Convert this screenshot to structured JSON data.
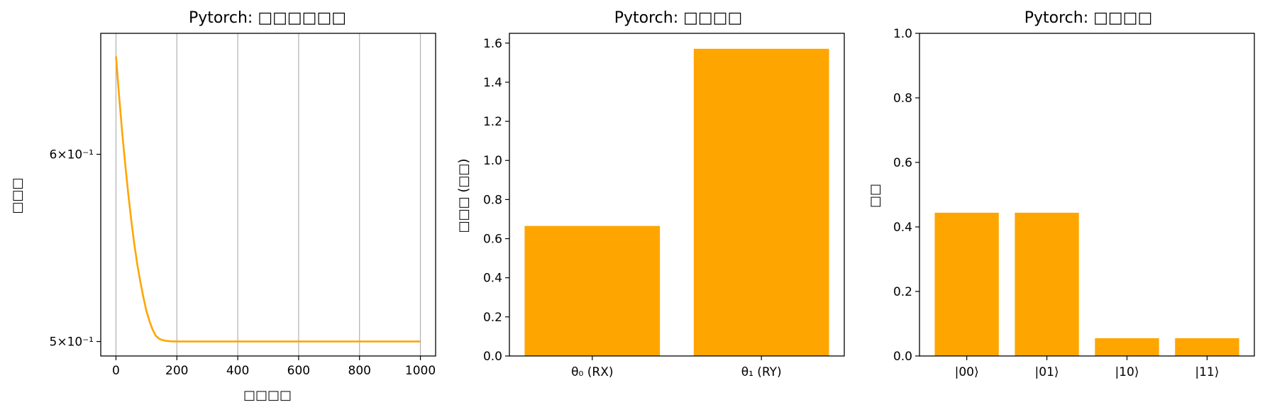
{
  "chart_data": [
    {
      "type": "line",
      "title": "Pytorch: □□□□□□",
      "xlabel": "□□□□",
      "ylabel": "□□□",
      "color": "#FFA500",
      "xlim": [
        -50,
        1050
      ],
      "ylim": [
        0.493,
        0.675
      ],
      "yscale": "log",
      "grid": "x",
      "xticks": [
        0,
        200,
        400,
        600,
        800,
        1000
      ],
      "xtick_labels": [
        "0",
        "200",
        "400",
        "600",
        "800",
        "1000"
      ],
      "yticks": [
        0.5,
        0.6
      ],
      "ytick_labels": [
        "5×10⁻¹",
        "6×10⁻¹"
      ],
      "series": [
        {
          "x": [
            0,
            10,
            20,
            30,
            40,
            50,
            60,
            70,
            80,
            90,
            100,
            110,
            120,
            130,
            140,
            150,
            160,
            180,
            200,
            250,
            300,
            400,
            500,
            600,
            700,
            800,
            900,
            1000
          ],
          "values": [
            0.66,
            0.636,
            0.614,
            0.595,
            0.578,
            0.563,
            0.55,
            0.539,
            0.53,
            0.522,
            0.515,
            0.51,
            0.506,
            0.503,
            0.5015,
            0.5008,
            0.5004,
            0.5001,
            0.5,
            0.5,
            0.5,
            0.5,
            0.5,
            0.5,
            0.5,
            0.5,
            0.5,
            0.5
          ]
        }
      ]
    },
    {
      "type": "bar",
      "title": "Pytorch: □□□□",
      "xlabel": "",
      "ylabel": "□□□ (□□)",
      "color": "#FFA500",
      "categories": [
        "θ₀ (RX)",
        "θ₁ (RY)"
      ],
      "values": [
        0.665,
        1.571
      ],
      "ylim": [
        0,
        1.65
      ],
      "yticks": [
        0.0,
        0.2,
        0.4,
        0.6,
        0.8,
        1.0,
        1.2,
        1.4,
        1.6
      ],
      "ytick_labels": [
        "0.0",
        "0.2",
        "0.4",
        "0.6",
        "0.8",
        "1.0",
        "1.2",
        "1.4",
        "1.6"
      ]
    },
    {
      "type": "bar",
      "title": "Pytorch: □□□□",
      "xlabel": "",
      "ylabel": "□□",
      "color": "#FFA500",
      "categories": [
        "|00⟩",
        "|01⟩",
        "|10⟩",
        "|11⟩"
      ],
      "values": [
        0.444,
        0.444,
        0.055,
        0.055
      ],
      "ylim": [
        0,
        1.0
      ],
      "yticks": [
        0.0,
        0.2,
        0.4,
        0.6,
        0.8,
        1.0
      ],
      "ytick_labels": [
        "0.0",
        "0.2",
        "0.4",
        "0.6",
        "0.8",
        "1.0"
      ]
    }
  ]
}
